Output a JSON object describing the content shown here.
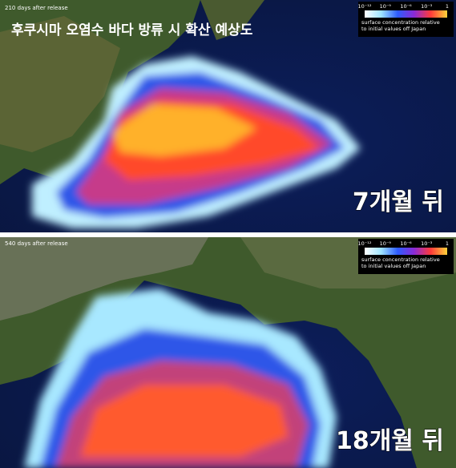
{
  "title": "후쿠시마 오염수 바다 방류 시 확산 예상도",
  "panels": [
    {
      "caption": "210 days after release",
      "label": "7개월 뒤",
      "colorbar": {
        "ticks": [
          "10⁻¹²",
          "10⁻⁹",
          "10⁻⁶",
          "10⁻³",
          "1"
        ],
        "lines": [
          "surface concentration relative",
          "to initial values off Japan"
        ]
      }
    },
    {
      "caption": "540 days after release",
      "label": "18개월 뒤",
      "colorbar": {
        "ticks": [
          "10⁻¹²",
          "10⁻⁹",
          "10⁻⁶",
          "10⁻³",
          "1"
        ],
        "lines": [
          "surface concentration relative",
          "to initial values off Japan"
        ]
      }
    }
  ]
}
